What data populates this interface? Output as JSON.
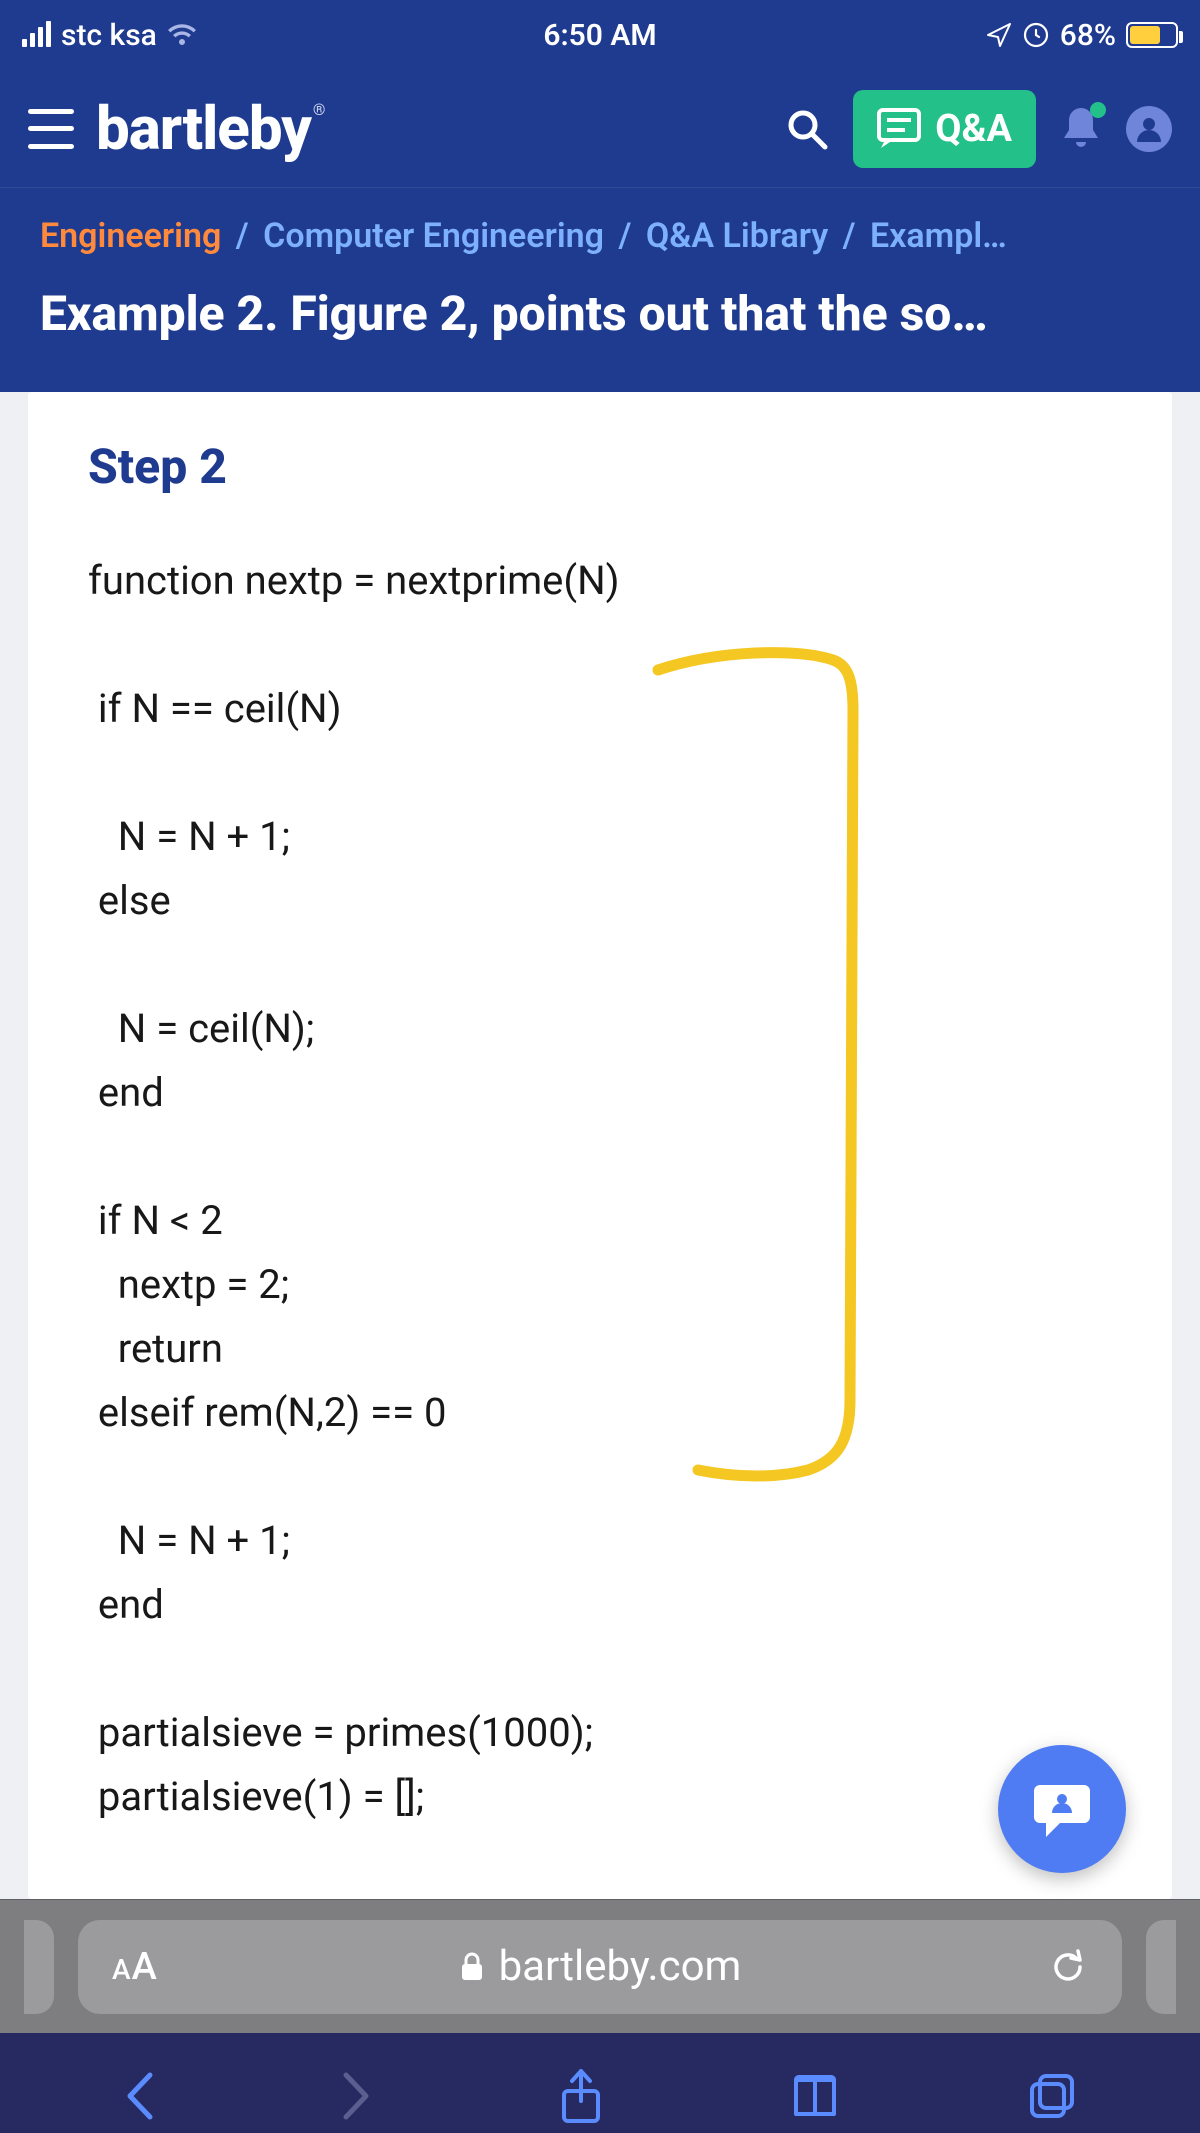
{
  "status": {
    "carrier": "stc ksa",
    "time": "6:50 AM",
    "battery_percent": "68%",
    "battery_fill_pct": 68
  },
  "header": {
    "brand": "bartleby",
    "brand_reg": "®",
    "qa_label": "Q&A"
  },
  "breadcrumbs": {
    "items": [
      {
        "label": "Engineering",
        "cls": "orange"
      },
      {
        "label": "Computer Engineering",
        "cls": ""
      },
      {
        "label": "Q&A Library",
        "cls": ""
      },
      {
        "label": "Exampl…",
        "cls": ""
      }
    ],
    "sep": "/"
  },
  "title": "Example 2. Figure 2, points out that the so…",
  "step": {
    "heading": "Step 2"
  },
  "code_lines": [
    "function nextp = nextprime(N)",
    "",
    " if N == ceil(N)",
    "",
    "   N = N + 1;",
    " else",
    "",
    "   N = ceil(N);",
    " end",
    "",
    " if N < 2",
    "   nextp = 2;",
    "   return",
    " elseif rem(N,2) == 0",
    "",
    "   N = N + 1;",
    " end",
    "",
    " partialsieve = primes(1000);",
    " partialsieve(1) = [];"
  ],
  "annotation": {
    "stroke": "#f4c722",
    "stroke_width": 10
  },
  "chat_fab": {
    "bg": "#4f7cf3"
  },
  "address_bar": {
    "aa_small": "A",
    "aa_large": "A",
    "domain": "bartleby.com"
  },
  "colors": {
    "header_bg": "#1f3b8f",
    "qa_bg": "#23c08a",
    "link_blue": "#7db0ff",
    "link_orange": "#ff8a3d",
    "battery_fill": "#ffcf3d",
    "toolbar_bg": "#262a60",
    "toolbar_icon": "#5a8cff",
    "addr_bg": "#7e7e81",
    "addr_pill": "#9b9b9e"
  }
}
